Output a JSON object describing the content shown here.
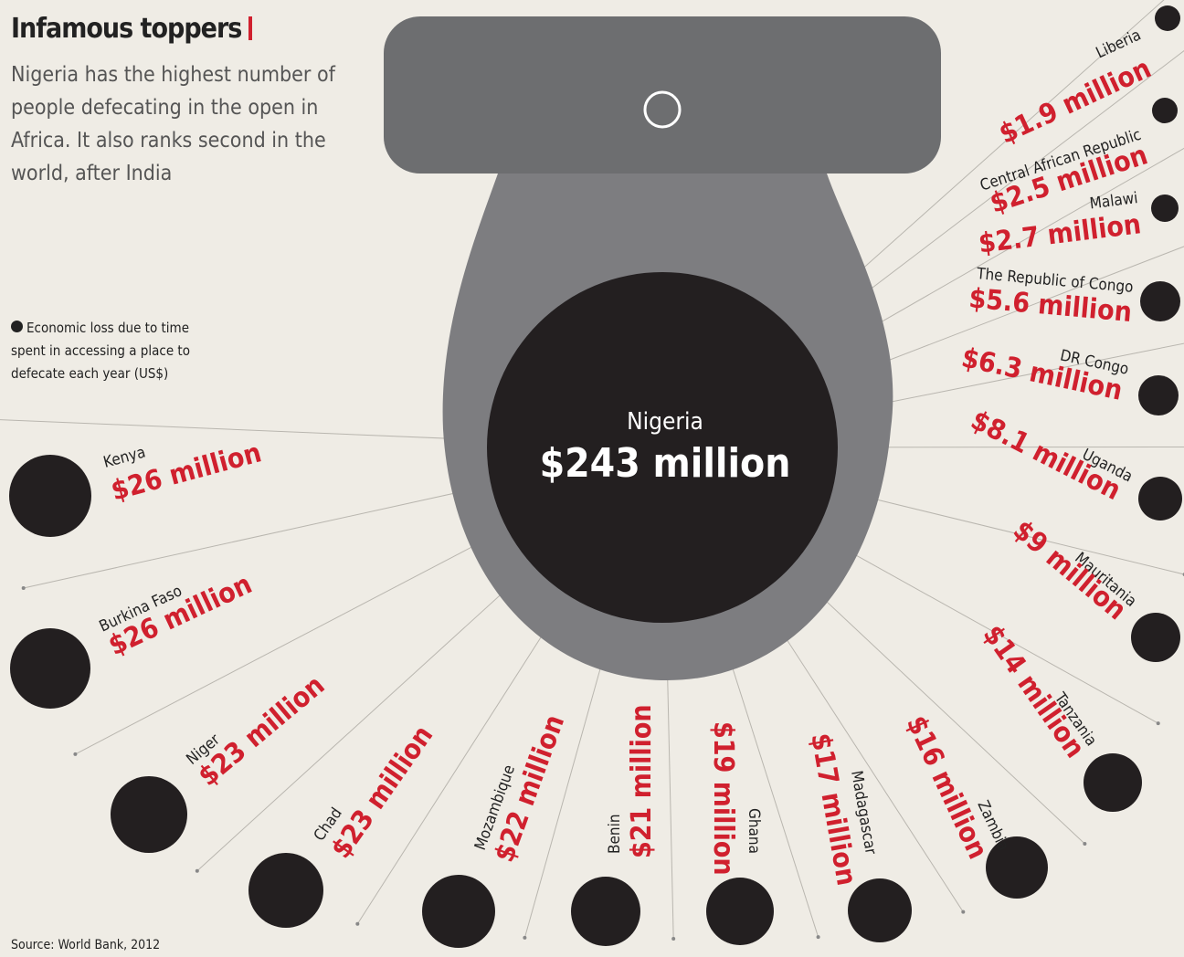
{
  "header": {
    "title": "Infamous toppers",
    "subtitle": "Nigeria has the highest number of people defecating in the open in Africa. It also ranks second in the world, after India"
  },
  "legend": "Economic loss due to time spent in accessing a place to defecate each year (US$)",
  "center": {
    "name": "Nigeria",
    "value": "$243 million"
  },
  "countries": [
    {
      "name": "Liberia",
      "value": "$1.9 million"
    },
    {
      "name": "Central African Republic",
      "value": "$2.5 million"
    },
    {
      "name": "Malawi",
      "value": "$2.7 million"
    },
    {
      "name": "The Republic of Congo",
      "value": "$5.6 million"
    },
    {
      "name": "DR Congo",
      "value": "$6.3 million"
    },
    {
      "name": "Uganda",
      "value": "$8.1 million"
    },
    {
      "name": "Mauritania",
      "value": "$9 million"
    },
    {
      "name": "Tanzania",
      "value": "$14 million"
    },
    {
      "name": "Zambia",
      "value": "$16 million"
    },
    {
      "name": "Madagascar",
      "value": "$17 million"
    },
    {
      "name": "Ghana",
      "value": "$19 million"
    },
    {
      "name": "Benin",
      "value": "$21 million"
    },
    {
      "name": "Mozambique",
      "value": "$22 million"
    },
    {
      "name": "Chad",
      "value": "$23 million"
    },
    {
      "name": "Niger",
      "value": "$23 million"
    },
    {
      "name": "Burkina Faso",
      "value": "$26 million"
    },
    {
      "name": "Kenya",
      "value": "$26 million"
    }
  ],
  "source": "Source: World Bank, 2012"
}
